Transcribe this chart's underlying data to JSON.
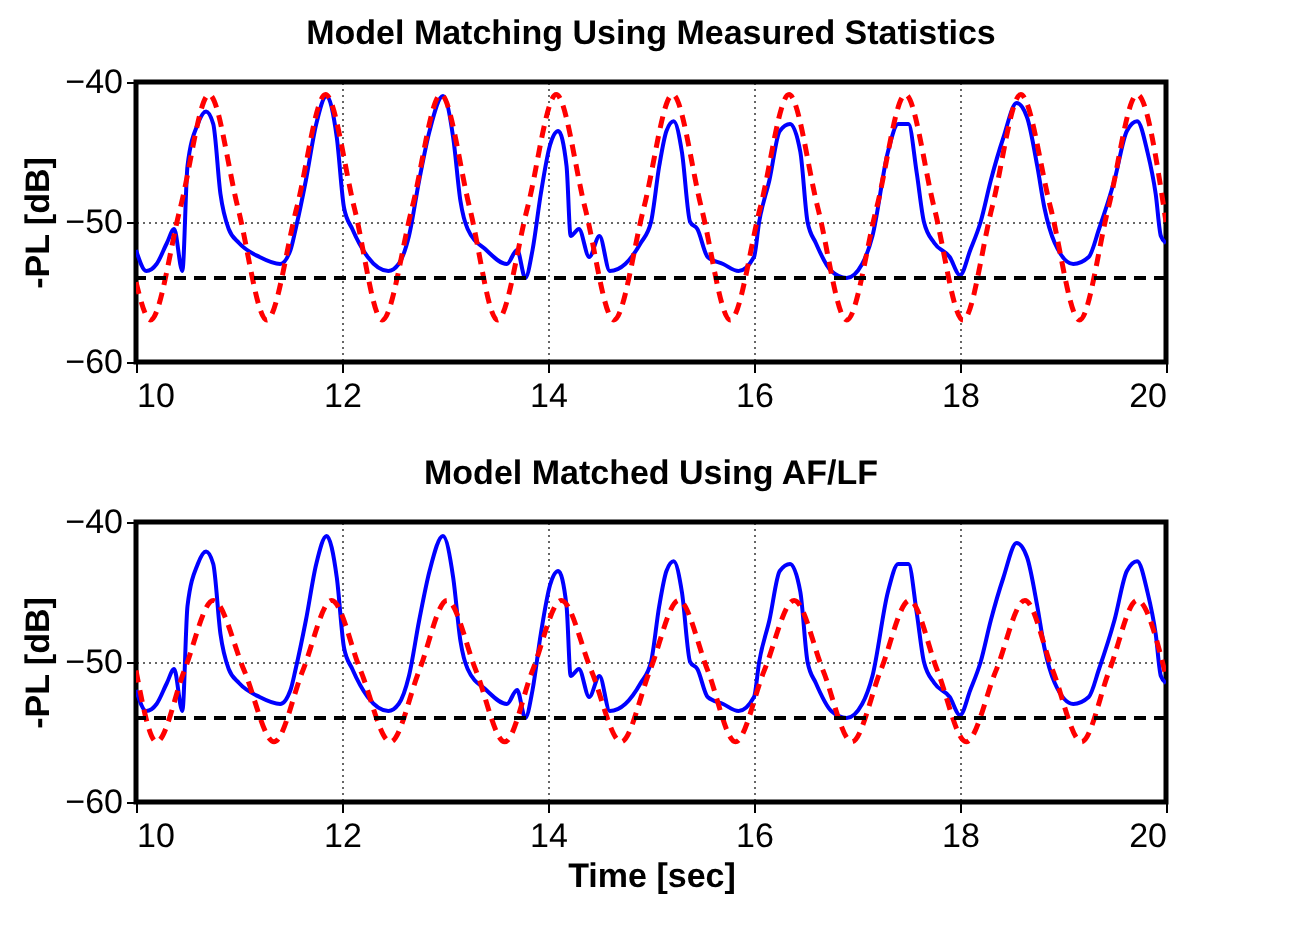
{
  "chart_data": [
    {
      "type": "line",
      "title": "Model Matching Using Measured Statistics",
      "ylabel": "-PL [dB]",
      "xlim": [
        10,
        20
      ],
      "xticks": [
        10,
        12,
        14,
        16,
        18,
        20
      ],
      "ylim": [
        -60,
        -40
      ],
      "yticks": [
        -60,
        -50,
        -40
      ],
      "grid": true,
      "series": [
        {
          "color": "#0000ff",
          "line_style": "solid",
          "x": [
            10,
            10.1,
            10.2,
            10.3,
            10.37,
            10.45,
            10.5,
            10.6,
            10.68,
            10.75,
            10.82,
            10.9,
            11.0,
            11.2,
            11.4,
            11.5,
            11.55,
            11.65,
            11.75,
            11.85,
            11.95,
            12.02,
            12.1,
            12.25,
            12.45,
            12.55,
            12.65,
            12.75,
            12.85,
            12.98,
            13.08,
            13.15,
            13.22,
            13.4,
            13.6,
            13.7,
            13.78,
            13.85,
            13.93,
            14.02,
            14.1,
            14.18,
            14.22,
            14.3,
            14.4,
            14.5,
            14.6,
            14.75,
            14.9,
            15.0,
            15.08,
            15.15,
            15.22,
            15.3,
            15.38,
            15.45,
            15.55,
            15.7,
            15.85,
            16.0,
            16.05,
            16.15,
            16.25,
            16.35,
            16.45,
            16.52,
            16.6,
            16.75,
            16.9,
            17.05,
            17.15,
            17.3,
            17.4,
            17.5,
            17.58,
            17.65,
            17.75,
            17.9,
            18.0,
            18.1,
            18.2,
            18.3,
            18.42,
            18.55,
            18.65,
            18.75,
            18.82,
            18.92,
            19.1,
            19.25,
            19.35,
            19.5,
            19.62,
            19.72,
            19.82,
            19.9,
            19.95,
            20.0
          ],
          "values": [
            -52,
            -53.5,
            -53,
            -51.5,
            -50.5,
            -53.5,
            -46,
            -43,
            -42.1,
            -43,
            -48,
            -50.5,
            -51.5,
            -52.5,
            -53,
            -52,
            -50.5,
            -47,
            -43,
            -41,
            -44,
            -49,
            -50.5,
            -52.5,
            -53.5,
            -53,
            -51,
            -47,
            -43.5,
            -41,
            -44,
            -48.5,
            -50.5,
            -52,
            -53,
            -52,
            -54,
            -52,
            -48,
            -44.5,
            -43.5,
            -46,
            -51,
            -50.5,
            -52.5,
            -51,
            -53.5,
            -53,
            -51.5,
            -50,
            -46,
            -43.5,
            -42.8,
            -45,
            -50,
            -50.5,
            -52.5,
            -53,
            -53.5,
            -52.5,
            -50,
            -47,
            -43.5,
            -43,
            -45,
            -50,
            -51.5,
            -53.5,
            -54,
            -53,
            -51,
            -45,
            -43,
            -43,
            -46.5,
            -50,
            -51.5,
            -52.5,
            -53.8,
            -52,
            -50,
            -47,
            -44,
            -41.5,
            -42.5,
            -46,
            -49,
            -51.5,
            -53,
            -52.5,
            -50.5,
            -47,
            -43.5,
            -42.8,
            -45,
            -48,
            -51,
            -51.5
          ]
        },
        {
          "color": "#ff0000",
          "line_style": "dashed",
          "x": [
            10,
            10.14,
            10.43,
            10.71,
            10.99,
            11.27,
            11.56,
            11.84,
            12.12,
            12.39,
            12.68,
            12.96,
            13.24,
            13.51,
            13.8,
            14.08,
            14.36,
            14.64,
            14.93,
            15.21,
            15.49,
            15.77,
            16.06,
            16.34,
            16.62,
            16.9,
            17.19,
            17.47,
            17.75,
            18.03,
            18.31,
            18.59,
            18.88,
            19.16,
            19.44,
            19.72,
            20
          ],
          "values": [
            -54.3,
            -57,
            -49,
            -40.9,
            -49,
            -57,
            -49,
            -40.9,
            -49,
            -57,
            -49,
            -40.9,
            -49,
            -57,
            -49,
            -40.9,
            -49,
            -57,
            -49,
            -40.9,
            -49,
            -57,
            -49,
            -40.9,
            -49,
            -57,
            -49,
            -40.9,
            -49,
            -57,
            -49,
            -40.9,
            -49,
            -57,
            -49,
            -40.9,
            -50
          ]
        }
      ],
      "ref_lines": [
        {
          "axis": "y",
          "value": -54,
          "color": "#000000",
          "line_style": "dashed"
        }
      ]
    },
    {
      "type": "line",
      "title": "Model Matched Using AF/LF",
      "xlabel": "Time [sec]",
      "ylabel": "-PL [dB]",
      "xlim": [
        10,
        20
      ],
      "xticks": [
        10,
        12,
        14,
        16,
        18,
        20
      ],
      "ylim": [
        -60,
        -40
      ],
      "yticks": [
        -60,
        -50,
        -40
      ],
      "grid": true,
      "series": [
        {
          "color": "#0000ff",
          "line_style": "solid",
          "x": [
            10,
            10.1,
            10.2,
            10.3,
            10.37,
            10.45,
            10.5,
            10.6,
            10.68,
            10.75,
            10.82,
            10.9,
            11.0,
            11.2,
            11.4,
            11.5,
            11.55,
            11.65,
            11.75,
            11.85,
            11.95,
            12.02,
            12.1,
            12.25,
            12.45,
            12.55,
            12.65,
            12.75,
            12.85,
            12.98,
            13.08,
            13.15,
            13.22,
            13.4,
            13.6,
            13.7,
            13.78,
            13.85,
            13.93,
            14.02,
            14.1,
            14.18,
            14.22,
            14.3,
            14.4,
            14.5,
            14.6,
            14.75,
            14.9,
            15.0,
            15.08,
            15.15,
            15.22,
            15.3,
            15.38,
            15.45,
            15.55,
            15.7,
            15.85,
            16.0,
            16.05,
            16.15,
            16.25,
            16.35,
            16.45,
            16.52,
            16.6,
            16.75,
            16.9,
            17.05,
            17.15,
            17.3,
            17.4,
            17.5,
            17.58,
            17.65,
            17.75,
            17.9,
            18.0,
            18.1,
            18.2,
            18.3,
            18.42,
            18.55,
            18.65,
            18.75,
            18.82,
            18.92,
            19.1,
            19.25,
            19.35,
            19.5,
            19.62,
            19.72,
            19.82,
            19.9,
            19.95,
            20.0
          ],
          "values": [
            -52,
            -53.5,
            -53,
            -51.5,
            -50.5,
            -53.5,
            -46,
            -43,
            -42.1,
            -43,
            -48,
            -50.5,
            -51.5,
            -52.5,
            -53,
            -52,
            -50.5,
            -47,
            -43,
            -41,
            -44,
            -49,
            -50.5,
            -52.5,
            -53.5,
            -53,
            -51,
            -47,
            -43.5,
            -41,
            -44,
            -48.5,
            -50.5,
            -52,
            -53,
            -52,
            -54,
            -52,
            -48,
            -44.5,
            -43.5,
            -46,
            -51,
            -50.5,
            -52.5,
            -51,
            -53.5,
            -53,
            -51.5,
            -50,
            -46,
            -43.5,
            -42.8,
            -45,
            -50,
            -50.5,
            -52.5,
            -53,
            -53.5,
            -52.5,
            -50,
            -47,
            -43.5,
            -43,
            -45,
            -50,
            -51.5,
            -53.5,
            -54,
            -53,
            -51,
            -45,
            -43,
            -43,
            -46.5,
            -50,
            -51.5,
            -52.5,
            -53.8,
            -52,
            -50,
            -47,
            -44,
            -41.5,
            -42.5,
            -46,
            -49,
            -51.5,
            -53,
            -52.5,
            -50.5,
            -47,
            -43.5,
            -42.8,
            -45,
            -48,
            -51,
            -51.5
          ]
        },
        {
          "color": "#ff0000",
          "line_style": "dashed",
          "x": [
            10,
            10.2,
            10.47,
            10.75,
            11.05,
            11.34,
            11.62,
            11.9,
            12.18,
            12.47,
            12.75,
            13.02,
            13.3,
            13.58,
            13.85,
            14.13,
            14.42,
            14.71,
            14.99,
            15.27,
            15.55,
            15.82,
            16.1,
            16.39,
            16.67,
            16.95,
            17.23,
            17.51,
            17.78,
            18.06,
            18.35,
            18.63,
            18.9,
            19.18,
            19.45,
            19.72,
            20
          ],
          "values": [
            -50.6,
            -55.7,
            -50.6,
            -45.6,
            -50.6,
            -55.7,
            -50.6,
            -45.6,
            -50.6,
            -55.7,
            -50.6,
            -45.6,
            -50.6,
            -55.7,
            -50.6,
            -45.6,
            -50.6,
            -55.7,
            -50.6,
            -45.6,
            -50.6,
            -55.7,
            -50.6,
            -45.6,
            -50.6,
            -55.7,
            -50.6,
            -45.6,
            -50.6,
            -55.7,
            -50.6,
            -45.6,
            -50.6,
            -55.7,
            -50.6,
            -45.6,
            -51
          ]
        }
      ],
      "ref_lines": [
        {
          "axis": "y",
          "value": -54,
          "color": "#000000",
          "line_style": "dashed"
        }
      ]
    }
  ]
}
